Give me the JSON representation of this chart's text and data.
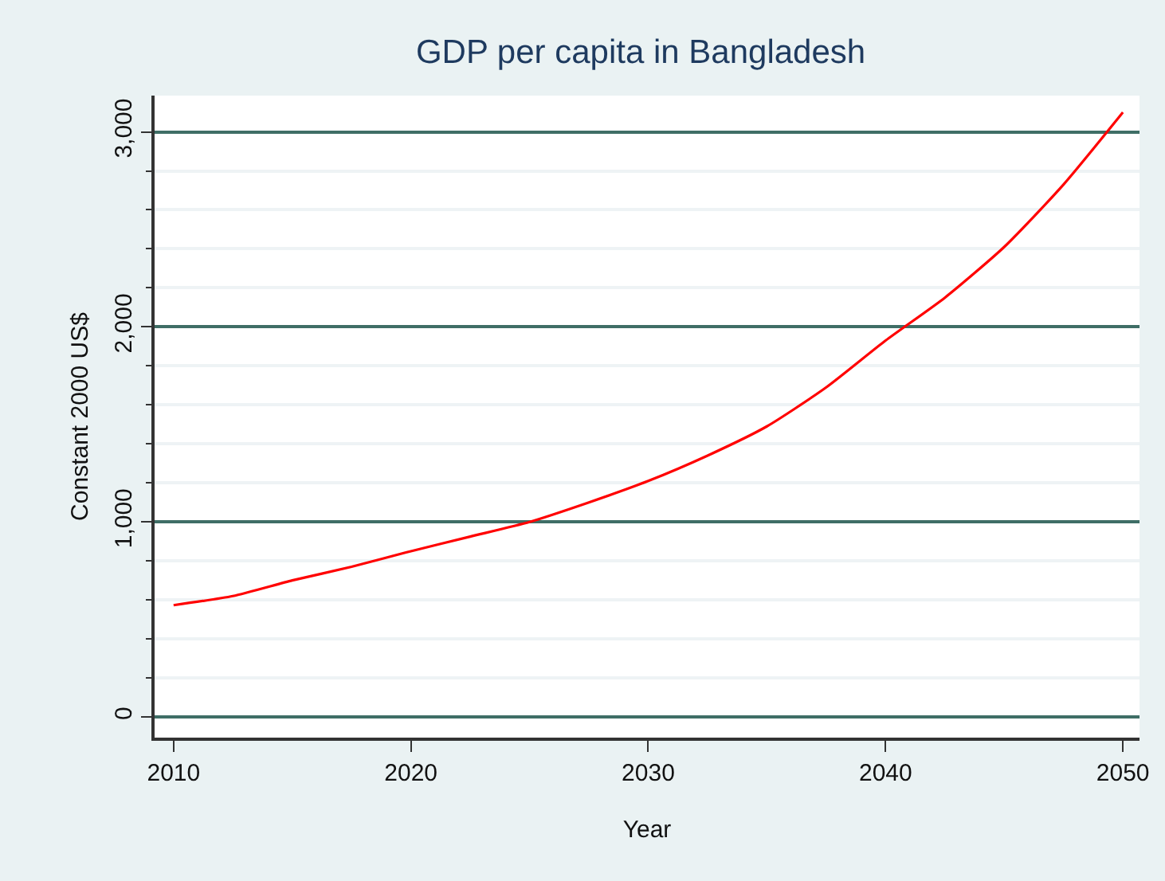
{
  "chart_data": {
    "type": "line",
    "title": "GDP per capita in Bangladesh",
    "xlabel": "Year",
    "ylabel": "Constant 2000 US$",
    "x": [
      2010,
      2012.5,
      2015,
      2017.5,
      2020,
      2022.5,
      2025,
      2027.5,
      2030,
      2032.5,
      2035,
      2037.5,
      2040,
      2042.5,
      2045,
      2047.5,
      2050
    ],
    "series": [
      {
        "color": "#ff0000",
        "values": [
          573,
          620,
          700,
          770,
          850,
          925,
          1000,
          1100,
          1210,
          1340,
          1490,
          1690,
          1930,
          2150,
          2410,
          2730,
          3100
        ]
      }
    ],
    "xlim": [
      2009.2,
      2050.7
    ],
    "xticks": [
      2010,
      2020,
      2030,
      2040,
      2050
    ],
    "ylim": [
      -106,
      3186
    ],
    "yticks": [
      {
        "value": 0,
        "label": "0"
      },
      {
        "value": 200,
        "label": null
      },
      {
        "value": 400,
        "label": null
      },
      {
        "value": 600,
        "label": null
      },
      {
        "value": 800,
        "label": null
      },
      {
        "value": 1000,
        "label": "1,000"
      },
      {
        "value": 1200,
        "label": null
      },
      {
        "value": 1400,
        "label": null
      },
      {
        "value": 1600,
        "label": null
      },
      {
        "value": 1800,
        "label": null
      },
      {
        "value": 2000,
        "label": "2,000"
      },
      {
        "value": 2200,
        "label": null
      },
      {
        "value": 2400,
        "label": null
      },
      {
        "value": 2600,
        "label": null
      },
      {
        "value": 2800,
        "label": null
      },
      {
        "value": 3000,
        "label": "3,000"
      }
    ],
    "grid": "y",
    "legend": false,
    "marker": "none",
    "line_style": "solid"
  }
}
